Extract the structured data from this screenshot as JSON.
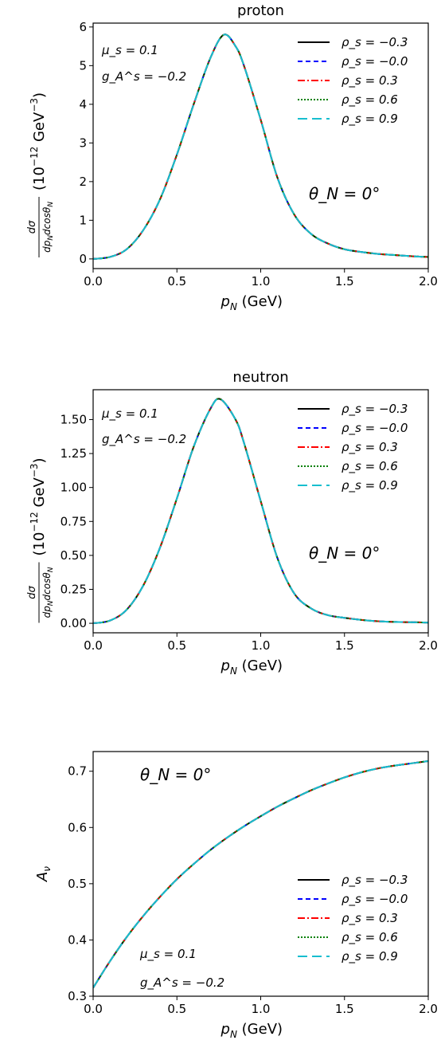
{
  "chart_data": [
    {
      "type": "line",
      "title": "proton",
      "xlabel": "p_N (GeV)",
      "ylabel": "dσ/(dp_N dcosθ_N) (10^-12 GeV^-3)",
      "xlim": [
        0.0,
        2.0
      ],
      "ylim": [
        -0.25,
        6.1
      ],
      "xticks": [
        0.0,
        0.5,
        1.0,
        1.5,
        2.0
      ],
      "xtick_labels": [
        "0.0",
        "0.5",
        "1.0",
        "1.5",
        "2.0"
      ],
      "yticks": [
        0,
        1,
        2,
        3,
        4,
        5,
        6
      ],
      "ytick_labels": [
        "0",
        "1",
        "2",
        "3",
        "4",
        "5",
        "6"
      ],
      "legend_position": "top-right",
      "grid": false,
      "annotations": [
        "μ_s = 0.1",
        "g_A^s = −0.2",
        "θ_N = 0°"
      ],
      "x": [
        0.0,
        0.1,
        0.2,
        0.3,
        0.4,
        0.5,
        0.6,
        0.7,
        0.78,
        0.85,
        0.9,
        1.0,
        1.1,
        1.2,
        1.3,
        1.4,
        1.5,
        1.6,
        1.7,
        1.8,
        1.9,
        2.0
      ],
      "series": [
        {
          "name": "ρ_s = −0.3",
          "values": [
            0.0,
            0.05,
            0.25,
            0.75,
            1.55,
            2.7,
            4.0,
            5.2,
            5.8,
            5.5,
            5.0,
            3.6,
            2.1,
            1.15,
            0.65,
            0.4,
            0.25,
            0.18,
            0.13,
            0.1,
            0.07,
            0.05
          ]
        },
        {
          "name": "ρ_s = −0.0",
          "values": [
            0.0,
            0.05,
            0.25,
            0.75,
            1.55,
            2.7,
            4.0,
            5.2,
            5.8,
            5.5,
            5.0,
            3.6,
            2.1,
            1.15,
            0.65,
            0.4,
            0.25,
            0.18,
            0.13,
            0.1,
            0.07,
            0.05
          ]
        },
        {
          "name": "ρ_s = 0.3",
          "values": [
            0.0,
            0.05,
            0.25,
            0.75,
            1.55,
            2.7,
            4.0,
            5.2,
            5.8,
            5.5,
            5.0,
            3.6,
            2.1,
            1.15,
            0.65,
            0.4,
            0.25,
            0.18,
            0.13,
            0.1,
            0.07,
            0.05
          ]
        },
        {
          "name": "ρ_s = 0.6",
          "values": [
            0.0,
            0.05,
            0.25,
            0.75,
            1.55,
            2.7,
            4.0,
            5.2,
            5.8,
            5.5,
            5.0,
            3.6,
            2.1,
            1.15,
            0.65,
            0.4,
            0.25,
            0.18,
            0.13,
            0.1,
            0.07,
            0.05
          ]
        },
        {
          "name": "ρ_s = 0.9",
          "values": [
            0.0,
            0.05,
            0.25,
            0.75,
            1.55,
            2.7,
            4.0,
            5.2,
            5.8,
            5.5,
            5.0,
            3.6,
            2.1,
            1.15,
            0.65,
            0.4,
            0.25,
            0.18,
            0.13,
            0.1,
            0.07,
            0.05
          ]
        }
      ]
    },
    {
      "type": "line",
      "title": "neutron",
      "xlabel": "p_N (GeV)",
      "ylabel": "dσ/(dp_N dcosθ_N) (10^-12 GeV^-3)",
      "xlim": [
        0.0,
        2.0
      ],
      "ylim": [
        -0.07,
        1.72
      ],
      "xticks": [
        0.0,
        0.5,
        1.0,
        1.5,
        2.0
      ],
      "xtick_labels": [
        "0.0",
        "0.5",
        "1.0",
        "1.5",
        "2.0"
      ],
      "yticks": [
        0.0,
        0.25,
        0.5,
        0.75,
        1.0,
        1.25,
        1.5
      ],
      "ytick_labels": [
        "0.00",
        "0.25",
        "0.50",
        "0.75",
        "1.00",
        "1.25",
        "1.50"
      ],
      "legend_position": "top-right",
      "grid": false,
      "annotations": [
        "μ_s = 0.1",
        "g_A^s = −0.2",
        "θ_N = 0°"
      ],
      "x": [
        0.0,
        0.1,
        0.2,
        0.3,
        0.4,
        0.5,
        0.6,
        0.7,
        0.76,
        0.85,
        0.9,
        1.0,
        1.1,
        1.2,
        1.3,
        1.4,
        1.5,
        1.6,
        1.7,
        1.8,
        1.9,
        2.0
      ],
      "series": [
        {
          "name": "ρ_s = −0.3",
          "values": [
            0.0,
            0.02,
            0.1,
            0.28,
            0.56,
            0.92,
            1.3,
            1.58,
            1.65,
            1.5,
            1.33,
            0.9,
            0.48,
            0.22,
            0.11,
            0.06,
            0.04,
            0.025,
            0.015,
            0.01,
            0.008,
            0.005
          ]
        },
        {
          "name": "ρ_s = −0.0",
          "values": [
            0.0,
            0.02,
            0.1,
            0.28,
            0.56,
            0.92,
            1.3,
            1.58,
            1.65,
            1.5,
            1.33,
            0.9,
            0.48,
            0.22,
            0.11,
            0.06,
            0.04,
            0.025,
            0.015,
            0.01,
            0.008,
            0.005
          ]
        },
        {
          "name": "ρ_s = 0.3",
          "values": [
            0.0,
            0.02,
            0.1,
            0.28,
            0.56,
            0.92,
            1.3,
            1.58,
            1.65,
            1.5,
            1.33,
            0.9,
            0.48,
            0.22,
            0.11,
            0.06,
            0.04,
            0.025,
            0.015,
            0.01,
            0.008,
            0.005
          ]
        },
        {
          "name": "ρ_s = 0.6",
          "values": [
            0.0,
            0.02,
            0.1,
            0.28,
            0.56,
            0.92,
            1.3,
            1.58,
            1.65,
            1.5,
            1.33,
            0.9,
            0.48,
            0.22,
            0.11,
            0.06,
            0.04,
            0.025,
            0.015,
            0.01,
            0.008,
            0.005
          ]
        },
        {
          "name": "ρ_s = 0.9",
          "values": [
            0.0,
            0.02,
            0.1,
            0.28,
            0.56,
            0.92,
            1.3,
            1.58,
            1.65,
            1.5,
            1.33,
            0.9,
            0.48,
            0.22,
            0.11,
            0.06,
            0.04,
            0.025,
            0.015,
            0.01,
            0.008,
            0.005
          ]
        }
      ]
    },
    {
      "type": "line",
      "title": "",
      "xlabel": "p_N (GeV)",
      "ylabel": "A_ν",
      "xlim": [
        0.0,
        2.0
      ],
      "ylim": [
        0.3,
        0.735
      ],
      "xticks": [
        0.0,
        0.5,
        1.0,
        1.5,
        2.0
      ],
      "xtick_labels": [
        "0.0",
        "0.5",
        "1.0",
        "1.5",
        "2.0"
      ],
      "yticks": [
        0.3,
        0.4,
        0.5,
        0.6,
        0.7
      ],
      "ytick_labels": [
        "0.3",
        "0.4",
        "0.5",
        "0.6",
        "0.7"
      ],
      "legend_position": "lower-right",
      "grid": false,
      "annotations": [
        "θ_N = 0°",
        "μ_s = 0.1",
        "g_A^s = −0.2"
      ],
      "x": [
        0.0,
        0.1,
        0.2,
        0.3,
        0.4,
        0.5,
        0.6,
        0.7,
        0.8,
        0.9,
        1.0,
        1.1,
        1.2,
        1.3,
        1.4,
        1.5,
        1.6,
        1.7,
        1.8,
        1.9,
        2.0
      ],
      "series": [
        {
          "name": "ρ_s = −0.3",
          "values": [
            0.315,
            0.362,
            0.405,
            0.443,
            0.477,
            0.508,
            0.535,
            0.56,
            0.582,
            0.602,
            0.62,
            0.637,
            0.652,
            0.666,
            0.678,
            0.689,
            0.698,
            0.705,
            0.71,
            0.714,
            0.718
          ]
        },
        {
          "name": "ρ_s = −0.0",
          "values": [
            0.315,
            0.362,
            0.405,
            0.443,
            0.477,
            0.508,
            0.535,
            0.56,
            0.582,
            0.602,
            0.62,
            0.637,
            0.652,
            0.666,
            0.678,
            0.689,
            0.698,
            0.705,
            0.71,
            0.714,
            0.718
          ]
        },
        {
          "name": "ρ_s = 0.3",
          "values": [
            0.315,
            0.362,
            0.405,
            0.443,
            0.477,
            0.508,
            0.535,
            0.56,
            0.582,
            0.602,
            0.62,
            0.637,
            0.652,
            0.666,
            0.678,
            0.689,
            0.698,
            0.705,
            0.71,
            0.714,
            0.718
          ]
        },
        {
          "name": "ρ_s = 0.6",
          "values": [
            0.315,
            0.362,
            0.405,
            0.443,
            0.477,
            0.508,
            0.535,
            0.56,
            0.582,
            0.602,
            0.62,
            0.637,
            0.652,
            0.666,
            0.678,
            0.689,
            0.698,
            0.705,
            0.71,
            0.714,
            0.718
          ]
        },
        {
          "name": "ρ_s = 0.9",
          "values": [
            0.315,
            0.362,
            0.405,
            0.443,
            0.477,
            0.508,
            0.535,
            0.56,
            0.582,
            0.602,
            0.62,
            0.637,
            0.652,
            0.666,
            0.678,
            0.689,
            0.698,
            0.705,
            0.71,
            0.714,
            0.718
          ]
        }
      ]
    }
  ],
  "series_styles": [
    {
      "color": "#000000",
      "dash": "none",
      "icon": "solid-line"
    },
    {
      "color": "#0000ff",
      "dash": "6,4",
      "icon": "dashed-line"
    },
    {
      "color": "#ff0000",
      "dash": "9,3,2,3",
      "icon": "dashdot-line"
    },
    {
      "color": "#008000",
      "dash": "2,2",
      "icon": "dotted-line"
    },
    {
      "color": "#17becf",
      "dash": "12,6",
      "icon": "long-dash-line"
    }
  ]
}
